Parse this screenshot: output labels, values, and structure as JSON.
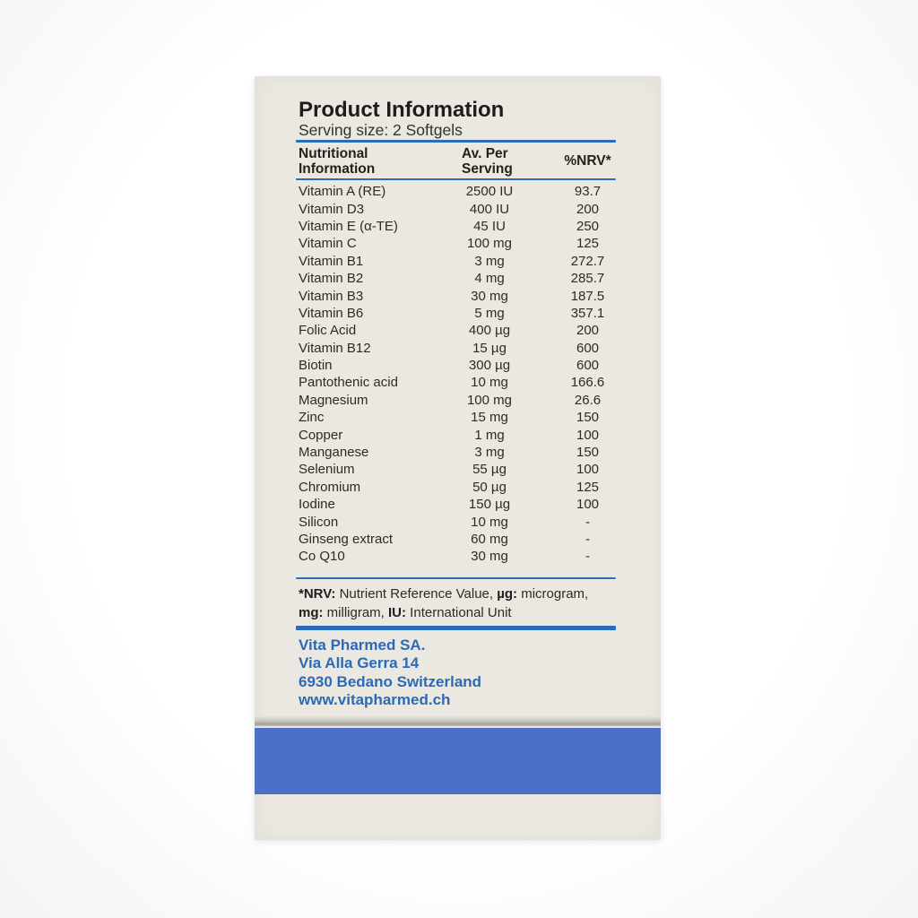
{
  "colors": {
    "accent_blue": "#2a6cba",
    "company_blue": "#2b6ab6",
    "band_blue": "#4b70c5",
    "panel_cream": "#eae8e1"
  },
  "panel": {
    "title": "Product Information",
    "serving_size": "Serving size: 2 Softgels",
    "table": {
      "col_headers": [
        "Nutritional Information",
        "Av. Per Serving",
        "%NRV*"
      ],
      "rows": [
        [
          "Vitamin A (RE)",
          "2500 IU",
          "93.7"
        ],
        [
          "Vitamin D3",
          "400 IU",
          "200"
        ],
        [
          "Vitamin E (α-TE)",
          "45 IU",
          "250"
        ],
        [
          "Vitamin C",
          "100 mg",
          "125"
        ],
        [
          "Vitamin B1",
          "3 mg",
          "272.7"
        ],
        [
          "Vitamin B2",
          "4 mg",
          "285.7"
        ],
        [
          "Vitamin B3",
          "30 mg",
          "187.5"
        ],
        [
          "Vitamin B6",
          "5 mg",
          "357.1"
        ],
        [
          "Folic Acid",
          "400 µg",
          "200"
        ],
        [
          "Vitamin B12",
          "15 µg",
          "600"
        ],
        [
          "Biotin",
          "300 µg",
          "600"
        ],
        [
          "Pantothenic acid",
          "10 mg",
          "166.6"
        ],
        [
          "Magnesium",
          "100 mg",
          "26.6"
        ],
        [
          "Zinc",
          "15 mg",
          "150"
        ],
        [
          "Copper",
          "1 mg",
          "100"
        ],
        [
          "Manganese",
          "3 mg",
          "150"
        ],
        [
          "Selenium",
          "55 µg",
          "100"
        ],
        [
          "Chromium",
          "50 µg",
          "125"
        ],
        [
          "Iodine",
          "150 µg",
          "100"
        ],
        [
          "Silicon",
          "10 mg",
          "-"
        ],
        [
          "Ginseng extract",
          "60 mg",
          "-"
        ],
        [
          "Co Q10",
          "30 mg",
          "-"
        ]
      ]
    },
    "footnote_lines": [
      [
        {
          "t": "*NRV:",
          "b": true
        },
        {
          "t": " Nutrient Reference Value, ",
          "b": false
        },
        {
          "t": "µg:",
          "b": true
        },
        {
          "t": " microgram,",
          "b": false
        }
      ],
      [
        {
          "t": "mg:",
          "b": true
        },
        {
          "t": " milligram, ",
          "b": false
        },
        {
          "t": "IU:",
          "b": true
        },
        {
          "t": " International Unit",
          "b": false
        }
      ]
    ],
    "company_lines": [
      "Vita Pharmed SA.",
      "Via Alla Gerra 14",
      "6930 Bedano Switzerland",
      "www.vitapharmed.ch"
    ]
  }
}
